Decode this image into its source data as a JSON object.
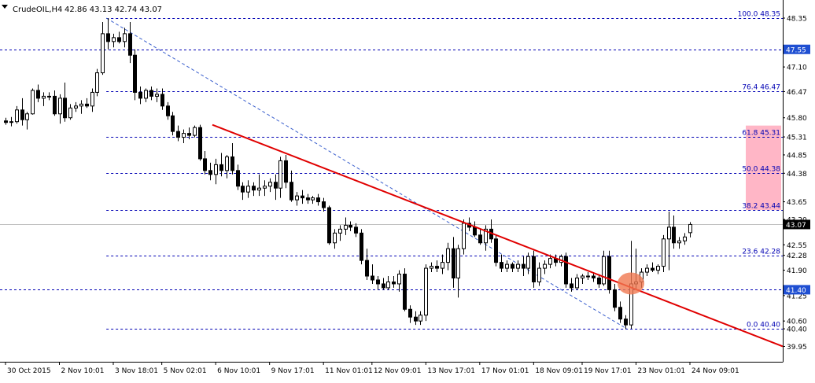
{
  "header": {
    "symbol_timeframe": "CrudeOIL,H4",
    "ohlc": "42.86 43.13 42.74 43.07"
  },
  "colors": {
    "background": "#ffffff",
    "candle_bull_fill": "#ffffff",
    "candle_bear_fill": "#000000",
    "candle_outline": "#000000",
    "fib_level_line": "#0000b4",
    "fib_label": "#0000b4",
    "fib_diagonal": "#3a5fcd",
    "trendline": "#e00000",
    "price_badge_blue": "#1f4fd2",
    "price_badge_black": "#000000",
    "fib_zone": "#ffb6c6",
    "highlight_circle": "#f07850"
  },
  "chart_data": {
    "type": "candlestick",
    "title": "CrudeOIL,H4",
    "x_tick_labels": [
      "30 Oct 2015",
      "2 Nov 10:01",
      "3 Nov 18:01",
      "5 Nov 02:01",
      "6 Nov 10:01",
      "9 Nov 17:01",
      "11 Nov 01:01",
      "12 Nov 09:01",
      "13 Nov 17:01",
      "17 Nov 01:01",
      "18 Nov 09:01",
      "19 Nov 17:01",
      "23 Nov 01:01",
      "24 Nov 09:01"
    ],
    "y_tick_labels": [
      "48.35",
      "47.55",
      "47.10",
      "46.47",
      "45.80",
      "45.31",
      "44.85",
      "44.38",
      "43.65",
      "43.20",
      "42.55",
      "42.28",
      "41.90",
      "41.40",
      "41.25",
      "40.60",
      "40.40",
      "39.95"
    ],
    "ylim": [
      39.85,
      48.55
    ],
    "grid": false,
    "fibonacci": {
      "levels": [
        {
          "label": "100.0 48.35",
          "value": 48.35
        },
        {
          "label": "76.4 46.47",
          "value": 46.47
        },
        {
          "label": "61.8 45.31",
          "value": 45.31
        },
        {
          "label": "50.0 44.38",
          "value": 44.38
        },
        {
          "label": "38.2 43.44",
          "value": 43.44
        },
        {
          "label": "23.6 42.28",
          "value": 42.28
        },
        {
          "label": "0.0 40.40",
          "value": 40.4
        }
      ],
      "swing_high": 48.35,
      "swing_low": 40.4
    },
    "horizontal_lines": [
      {
        "label": "47.55",
        "value": 47.55
      },
      {
        "label": "41.40",
        "value": 41.4
      }
    ],
    "current_price": {
      "label": "43.07",
      "value": 43.07
    },
    "highlight_zone": {
      "from": 43.44,
      "to": 45.6
    },
    "trendline": {
      "from_price": 45.62,
      "to_price": 39.95
    },
    "highlight_circle_price": 41.56,
    "candles": [
      [
        45.72,
        45.8,
        45.62,
        45.68
      ],
      [
        45.68,
        45.82,
        45.58,
        45.7
      ],
      [
        45.7,
        46.1,
        45.65,
        46.0
      ],
      [
        46.0,
        46.3,
        45.6,
        45.75
      ],
      [
        45.75,
        45.95,
        45.5,
        45.9
      ],
      [
        45.9,
        46.55,
        45.88,
        46.5
      ],
      [
        46.5,
        46.65,
        46.2,
        46.3
      ],
      [
        46.3,
        46.45,
        46.1,
        46.35
      ],
      [
        46.35,
        46.45,
        46.25,
        46.35
      ],
      [
        46.35,
        46.5,
        45.85,
        45.9
      ],
      [
        45.9,
        46.4,
        45.65,
        46.3
      ],
      [
        46.3,
        46.7,
        45.7,
        45.8
      ],
      [
        45.8,
        46.15,
        45.75,
        46.05
      ],
      [
        46.05,
        46.2,
        45.95,
        46.1
      ],
      [
        46.1,
        46.25,
        45.9,
        46.15
      ],
      [
        46.15,
        46.3,
        46.05,
        46.1
      ],
      [
        46.1,
        46.55,
        45.95,
        46.45
      ],
      [
        46.45,
        47.05,
        46.35,
        46.95
      ],
      [
        46.95,
        48.25,
        46.9,
        47.95
      ],
      [
        47.95,
        48.35,
        47.55,
        47.75
      ],
      [
        47.75,
        47.95,
        47.6,
        47.85
      ],
      [
        47.85,
        48.0,
        47.7,
        47.75
      ],
      [
        47.75,
        48.1,
        47.6,
        47.95
      ],
      [
        47.95,
        48.25,
        47.2,
        47.4
      ],
      [
        47.4,
        47.55,
        46.25,
        46.45
      ],
      [
        46.45,
        46.6,
        46.15,
        46.3
      ],
      [
        46.3,
        46.55,
        46.2,
        46.5
      ],
      [
        46.5,
        46.6,
        46.25,
        46.35
      ],
      [
        46.35,
        46.55,
        46.2,
        46.4
      ],
      [
        46.4,
        46.55,
        46.0,
        46.1
      ],
      [
        46.1,
        46.2,
        45.75,
        45.85
      ],
      [
        45.85,
        45.95,
        45.35,
        45.45
      ],
      [
        45.45,
        45.6,
        45.2,
        45.3
      ],
      [
        45.3,
        45.5,
        45.15,
        45.4
      ],
      [
        45.4,
        45.55,
        45.25,
        45.35
      ],
      [
        45.35,
        45.6,
        45.3,
        45.55
      ],
      [
        45.55,
        45.62,
        44.7,
        44.75
      ],
      [
        44.75,
        44.95,
        44.35,
        44.45
      ],
      [
        44.45,
        44.65,
        44.2,
        44.35
      ],
      [
        44.35,
        44.75,
        44.1,
        44.6
      ],
      [
        44.6,
        44.9,
        44.3,
        44.45
      ],
      [
        44.45,
        44.85,
        44.25,
        44.8
      ],
      [
        44.8,
        45.15,
        44.35,
        44.45
      ],
      [
        44.45,
        44.6,
        43.95,
        44.05
      ],
      [
        44.05,
        44.15,
        43.7,
        43.9
      ],
      [
        43.9,
        44.2,
        43.75,
        44.05
      ],
      [
        44.05,
        44.15,
        43.8,
        43.95
      ],
      [
        43.95,
        44.35,
        43.8,
        44.0
      ],
      [
        44.0,
        44.2,
        43.8,
        44.05
      ],
      [
        44.05,
        44.25,
        43.9,
        44.15
      ],
      [
        44.15,
        44.35,
        43.7,
        44.0
      ],
      [
        44.0,
        44.8,
        43.75,
        44.7
      ],
      [
        44.7,
        44.85,
        44.0,
        44.15
      ],
      [
        44.15,
        44.45,
        43.65,
        43.7
      ],
      [
        43.7,
        43.9,
        43.55,
        43.8
      ],
      [
        43.8,
        43.95,
        43.6,
        43.75
      ],
      [
        43.75,
        43.85,
        43.6,
        43.7
      ],
      [
        43.7,
        43.8,
        43.6,
        43.75
      ],
      [
        43.75,
        43.85,
        43.55,
        43.65
      ],
      [
        43.65,
        43.75,
        43.4,
        43.5
      ],
      [
        43.5,
        43.55,
        42.55,
        42.6
      ],
      [
        42.6,
        42.95,
        42.45,
        42.85
      ],
      [
        42.85,
        43.05,
        42.65,
        42.95
      ],
      [
        42.95,
        43.25,
        42.8,
        43.05
      ],
      [
        43.05,
        43.15,
        42.9,
        43.0
      ],
      [
        43.0,
        43.1,
        42.75,
        42.85
      ],
      [
        42.85,
        42.95,
        42.05,
        42.15
      ],
      [
        42.15,
        42.45,
        41.65,
        41.75
      ],
      [
        41.75,
        42.05,
        41.55,
        41.65
      ],
      [
        41.65,
        41.75,
        41.4,
        41.55
      ],
      [
        41.55,
        41.7,
        41.4,
        41.45
      ],
      [
        41.45,
        41.75,
        41.4,
        41.6
      ],
      [
        41.6,
        41.75,
        41.45,
        41.55
      ],
      [
        41.55,
        41.9,
        41.35,
        41.8
      ],
      [
        41.8,
        41.95,
        40.85,
        40.9
      ],
      [
        40.9,
        41.0,
        40.55,
        40.7
      ],
      [
        40.7,
        40.85,
        40.5,
        40.6
      ],
      [
        40.6,
        40.85,
        40.5,
        40.75
      ],
      [
        40.75,
        42.05,
        40.6,
        41.95
      ],
      [
        41.95,
        42.1,
        41.85,
        42.0
      ],
      [
        42.0,
        42.15,
        41.85,
        41.95
      ],
      [
        41.95,
        42.3,
        41.8,
        42.1
      ],
      [
        42.1,
        42.6,
        41.9,
        42.45
      ],
      [
        42.45,
        42.75,
        41.45,
        41.7
      ],
      [
        41.7,
        42.55,
        41.2,
        42.45
      ],
      [
        42.45,
        43.2,
        42.3,
        43.1
      ],
      [
        43.1,
        43.25,
        42.9,
        43.0
      ],
      [
        43.0,
        43.15,
        42.75,
        42.8
      ],
      [
        42.8,
        42.95,
        42.55,
        42.6
      ],
      [
        42.6,
        43.05,
        42.4,
        42.95
      ],
      [
        42.95,
        43.2,
        42.6,
        42.7
      ],
      [
        42.7,
        42.8,
        42.0,
        42.1
      ],
      [
        42.1,
        42.3,
        41.85,
        41.95
      ],
      [
        41.95,
        42.15,
        41.85,
        42.05
      ],
      [
        42.05,
        42.1,
        41.85,
        41.95
      ],
      [
        41.95,
        42.15,
        41.85,
        42.05
      ],
      [
        42.05,
        42.25,
        41.75,
        41.95
      ],
      [
        41.95,
        42.35,
        41.8,
        42.25
      ],
      [
        42.25,
        42.4,
        41.45,
        41.6
      ],
      [
        41.6,
        42.1,
        41.5,
        41.95
      ],
      [
        41.95,
        42.15,
        41.8,
        42.05
      ],
      [
        42.05,
        42.3,
        41.95,
        42.2
      ],
      [
        42.2,
        42.3,
        42.0,
        42.1
      ],
      [
        42.1,
        42.3,
        42.0,
        42.25
      ],
      [
        42.25,
        42.35,
        41.45,
        41.55
      ],
      [
        41.55,
        41.7,
        41.35,
        41.45
      ],
      [
        41.45,
        41.8,
        41.4,
        41.7
      ],
      [
        41.7,
        41.8,
        41.55,
        41.75
      ],
      [
        41.75,
        41.85,
        41.65,
        41.75
      ],
      [
        41.75,
        41.85,
        41.6,
        41.7
      ],
      [
        41.7,
        41.8,
        41.45,
        41.55
      ],
      [
        41.55,
        42.4,
        41.5,
        42.25
      ],
      [
        42.25,
        42.4,
        41.3,
        41.4
      ],
      [
        41.4,
        41.55,
        40.85,
        40.95
      ],
      [
        40.95,
        41.1,
        40.55,
        40.65
      ],
      [
        40.65,
        40.75,
        40.4,
        40.5
      ],
      [
        40.5,
        42.65,
        40.4,
        41.55
      ],
      [
        41.55,
        42.45,
        41.4,
        41.6
      ],
      [
        41.6,
        41.95,
        41.45,
        41.85
      ],
      [
        41.85,
        42.05,
        41.75,
        41.95
      ],
      [
        41.95,
        42.1,
        41.85,
        41.9
      ],
      [
        41.9,
        42.05,
        41.8,
        42.0
      ],
      [
        42.0,
        42.8,
        41.85,
        42.7
      ],
      [
        42.7,
        43.4,
        41.9,
        43.0
      ],
      [
        43.0,
        43.3,
        42.45,
        42.6
      ],
      [
        42.6,
        42.75,
        42.45,
        42.65
      ],
      [
        42.65,
        42.85,
        42.55,
        42.75
      ],
      [
        42.86,
        43.13,
        42.74,
        43.07
      ]
    ]
  }
}
